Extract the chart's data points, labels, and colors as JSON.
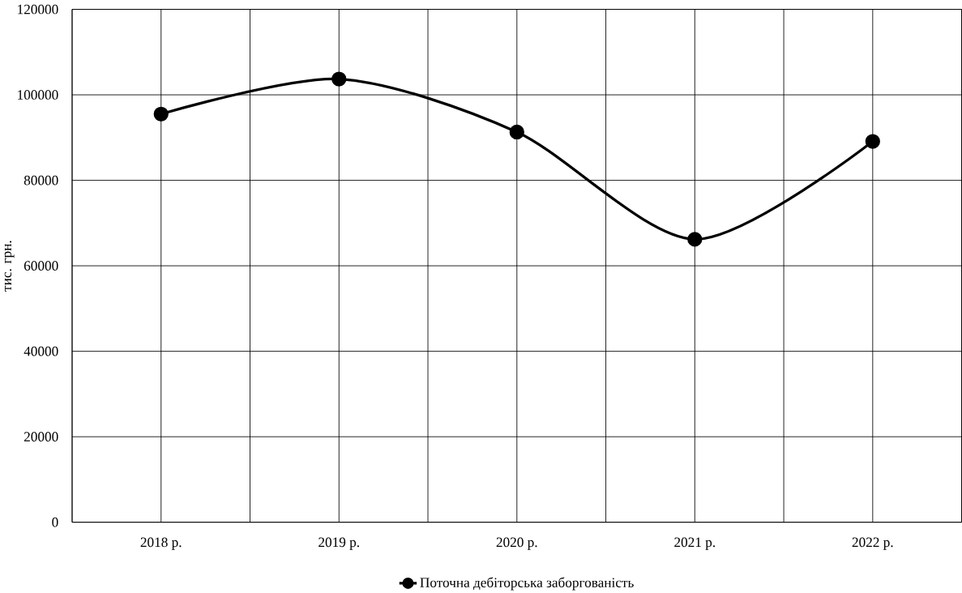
{
  "chart_data": {
    "type": "line",
    "ylabel": "тис. грн.",
    "categories": [
      "2018 р.",
      "2019 р.",
      "2020 р.",
      "2021 р.",
      "2022 р."
    ],
    "series": [
      {
        "name": "Поточна дебіторська заборгованість",
        "color": "#000000",
        "values": [
          95500,
          103700,
          91300,
          66200,
          89100
        ]
      }
    ],
    "ylim": [
      0,
      120000
    ],
    "yticks": [
      0,
      20000,
      40000,
      60000,
      80000,
      100000,
      120000
    ],
    "grid": true,
    "legend": "bottom",
    "marker": "circle",
    "line_style": "solid"
  }
}
